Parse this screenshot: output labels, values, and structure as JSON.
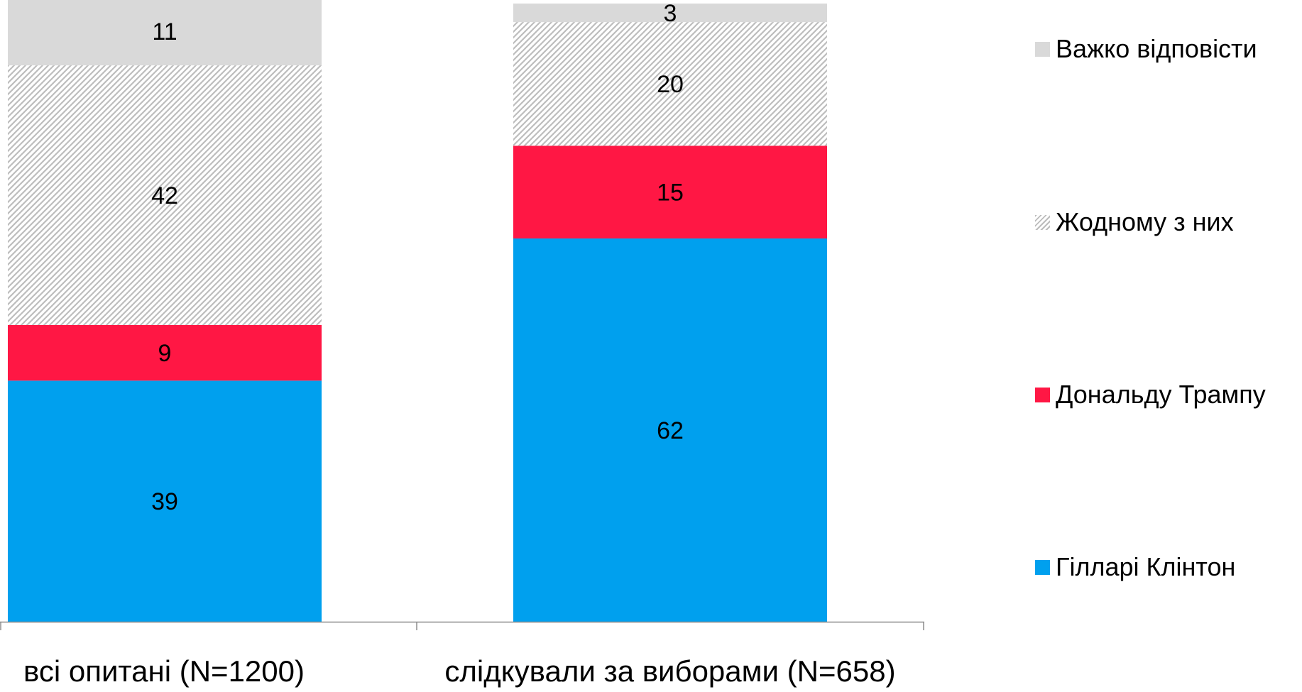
{
  "chart_data": {
    "type": "bar",
    "stacked": true,
    "categories": [
      "всі опитані (N=1200)",
      "слідкували за виборами (N=658)"
    ],
    "series": [
      {
        "name": "Гілларі Клінтон",
        "values": [
          39,
          62
        ],
        "color": "#00A0EE",
        "pattern": "solid"
      },
      {
        "name": "Дональду Трампу",
        "values": [
          9,
          15
        ],
        "color": "#FF1744",
        "pattern": "solid"
      },
      {
        "name": "Жодному з них",
        "values": [
          42,
          20
        ],
        "color": "#BBBBBB",
        "pattern": "hatched"
      },
      {
        "name": "Важко відповісти",
        "values": [
          11,
          3
        ],
        "color": "#D9D9D9",
        "pattern": "solid"
      }
    ],
    "ylim": [
      0,
      100
    ],
    "legend_order": [
      "Важко відповісти",
      "Жодному з них",
      "Дональду Трампу",
      "Гілларі Клінтон"
    ],
    "legend_position": "right",
    "grid": false
  }
}
